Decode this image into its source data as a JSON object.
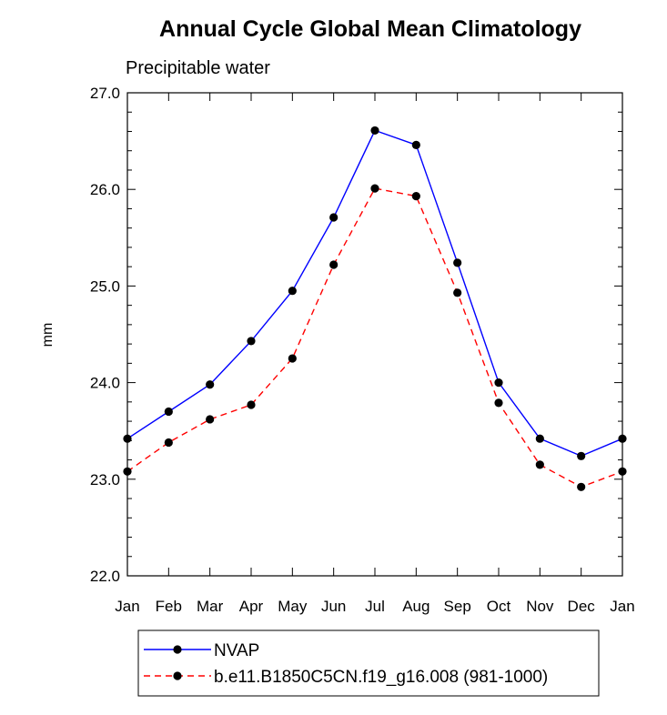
{
  "chart_data": {
    "type": "line",
    "title": "Annual Cycle Global Mean Climatology",
    "subtitle": "Precipitable water",
    "xlabel": "",
    "ylabel": "mm",
    "categories": [
      "Jan",
      "Feb",
      "Mar",
      "Apr",
      "May",
      "Jun",
      "Jul",
      "Aug",
      "Sep",
      "Oct",
      "Nov",
      "Dec",
      "Jan"
    ],
    "yticks": [
      "22.0",
      "23.0",
      "24.0",
      "25.0",
      "26.0",
      "27.0"
    ],
    "ylim": [
      22.0,
      27.0
    ],
    "grid": false,
    "legend_position": "bottom",
    "series": [
      {
        "name": "NVAP",
        "color": "#0000ff",
        "dash": "solid",
        "marker": "filled-circle",
        "values": [
          23.42,
          23.7,
          23.98,
          24.43,
          24.95,
          25.71,
          26.61,
          26.46,
          25.24,
          24.0,
          23.42,
          23.24,
          23.42
        ]
      },
      {
        "name": "b.e11.B1850C5CN.f19_g16.008 (981-1000)",
        "color": "#ff0000",
        "dash": "dashed",
        "marker": "filled-circle",
        "values": [
          23.08,
          23.38,
          23.62,
          23.77,
          24.25,
          25.22,
          26.01,
          25.93,
          24.93,
          23.79,
          23.15,
          22.92,
          23.08
        ]
      }
    ]
  }
}
